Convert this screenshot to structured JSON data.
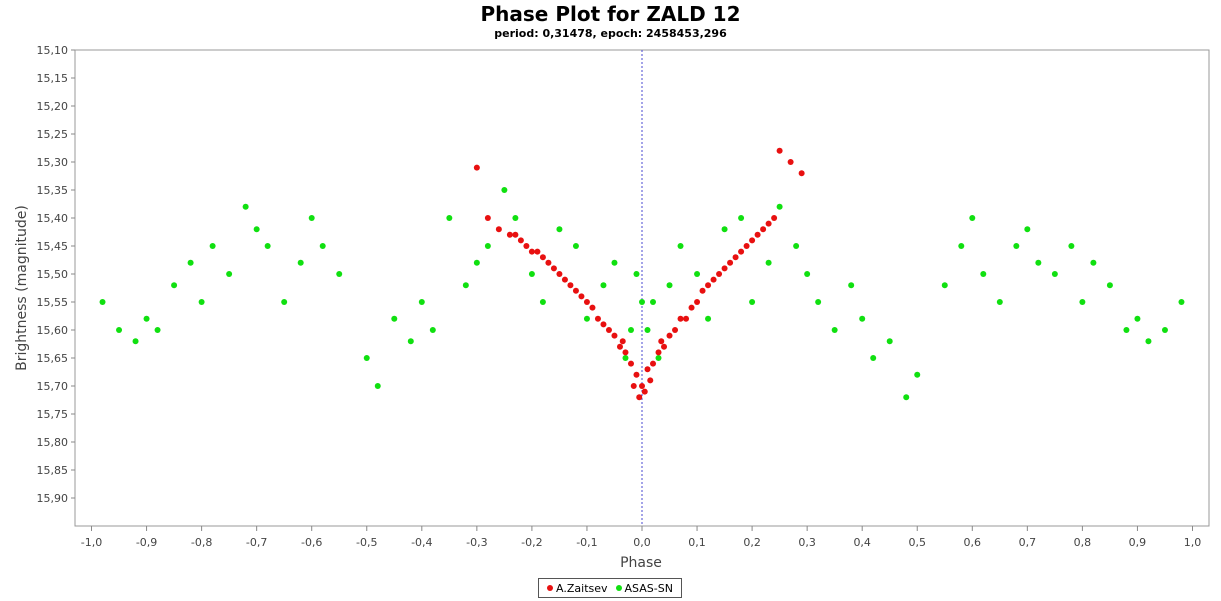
{
  "chart_data": {
    "type": "scatter",
    "title": "Phase Plot for ZALD 12",
    "subtitle": "period: 0,31478, epoch: 2458453,296",
    "xlabel": "Phase",
    "ylabel": "Brightness (magnitude)",
    "xlim": [
      -1.03,
      1.03
    ],
    "ylim": [
      15.1,
      15.95
    ],
    "y_inverted": true,
    "x_ticks": [
      "-1,0",
      "-0,9",
      "-0,8",
      "-0,7",
      "-0,6",
      "-0,5",
      "-0,4",
      "-0,3",
      "-0,2",
      "-0,1",
      "0,0",
      "0,1",
      "0,2",
      "0,3",
      "0,4",
      "0,5",
      "0,6",
      "0,7",
      "0,8",
      "0,9",
      "1,0"
    ],
    "y_ticks": [
      "15,10",
      "15,15",
      "15,20",
      "15,25",
      "15,30",
      "15,35",
      "15,40",
      "15,45",
      "15,50",
      "15,55",
      "15,60",
      "15,65",
      "15,70",
      "15,75",
      "15,80",
      "15,85",
      "15,90"
    ],
    "zero_line": 0.0,
    "legend_position": "bottom-center",
    "series": [
      {
        "name": "A.Zaitsev",
        "color": "#e81010",
        "x": [
          0.0,
          -0.02,
          -0.04,
          -0.06,
          -0.08,
          -0.1,
          -0.12,
          -0.14,
          -0.16,
          -0.18,
          -0.2,
          -0.22,
          -0.24,
          -0.26,
          -0.28,
          -0.3,
          0.02,
          0.04,
          0.06,
          0.08,
          0.1,
          0.12,
          0.14,
          0.16,
          0.18,
          0.2,
          0.22,
          0.24,
          -0.01,
          -0.03,
          -0.05,
          -0.07,
          -0.09,
          -0.11,
          -0.13,
          -0.15,
          -0.17,
          -0.19,
          -0.21,
          -0.23,
          0.01,
          0.03,
          0.05,
          0.07,
          0.09,
          0.11,
          0.13,
          0.15,
          0.17,
          0.19,
          0.21,
          0.23,
          0.25,
          0.27,
          0.29,
          -0.005,
          -0.015,
          0.005,
          0.015,
          -0.035,
          0.035
        ],
        "y": [
          15.7,
          15.66,
          15.63,
          15.6,
          15.58,
          15.55,
          15.53,
          15.51,
          15.49,
          15.47,
          15.46,
          15.44,
          15.43,
          15.42,
          15.4,
          15.31,
          15.66,
          15.63,
          15.6,
          15.58,
          15.55,
          15.52,
          15.5,
          15.48,
          15.46,
          15.44,
          15.42,
          15.4,
          15.68,
          15.64,
          15.61,
          15.59,
          15.56,
          15.54,
          15.52,
          15.5,
          15.48,
          15.46,
          15.45,
          15.43,
          15.67,
          15.64,
          15.61,
          15.58,
          15.56,
          15.53,
          15.51,
          15.49,
          15.47,
          15.45,
          15.43,
          15.41,
          15.28,
          15.3,
          15.32,
          15.72,
          15.7,
          15.71,
          15.69,
          15.62,
          15.62
        ]
      },
      {
        "name": "ASAS-SN",
        "color": "#10e010",
        "x": [
          0.0,
          -0.01,
          -0.02,
          -0.03,
          -0.05,
          -0.07,
          -0.1,
          -0.12,
          -0.15,
          -0.18,
          -0.2,
          -0.23,
          -0.25,
          -0.28,
          -0.3,
          -0.32,
          -0.35,
          -0.38,
          -0.4,
          -0.42,
          -0.45,
          -0.48,
          -0.5,
          0.01,
          0.02,
          0.03,
          0.05,
          0.07,
          0.1,
          0.12,
          0.15,
          0.18,
          0.2,
          0.23,
          0.25,
          0.28,
          0.3,
          0.32,
          0.35,
          0.38,
          0.4,
          0.42,
          0.45,
          0.48,
          0.5,
          -0.55,
          -0.58,
          -0.6,
          -0.62,
          -0.65,
          -0.68,
          -0.7,
          -0.72,
          -0.75,
          -0.78,
          -0.8,
          -0.82,
          -0.85,
          -0.88,
          -0.9,
          -0.92,
          -0.95,
          -0.98,
          0.55,
          0.58,
          0.6,
          0.62,
          0.65,
          0.68,
          0.7,
          0.72,
          0.75,
          0.78,
          0.8,
          0.82,
          0.85,
          0.88,
          0.9,
          0.92,
          0.95,
          0.98
        ],
        "y": [
          15.55,
          15.5,
          15.6,
          15.65,
          15.48,
          15.52,
          15.58,
          15.45,
          15.42,
          15.55,
          15.5,
          15.4,
          15.35,
          15.45,
          15.48,
          15.52,
          15.4,
          15.6,
          15.55,
          15.62,
          15.58,
          15.7,
          15.65,
          15.6,
          15.55,
          15.65,
          15.52,
          15.45,
          15.5,
          15.58,
          15.42,
          15.4,
          15.55,
          15.48,
          15.38,
          15.45,
          15.5,
          15.55,
          15.6,
          15.52,
          15.58,
          15.65,
          15.62,
          15.72,
          15.68,
          15.5,
          15.45,
          15.4,
          15.48,
          15.55,
          15.45,
          15.42,
          15.38,
          15.5,
          15.45,
          15.55,
          15.48,
          15.52,
          15.6,
          15.58,
          15.62,
          15.6,
          15.55,
          15.52,
          15.45,
          15.4,
          15.5,
          15.55,
          15.45,
          15.42,
          15.48,
          15.5,
          15.45,
          15.55,
          15.48,
          15.52,
          15.6,
          15.58,
          15.62,
          15.6,
          15.55
        ]
      }
    ]
  }
}
